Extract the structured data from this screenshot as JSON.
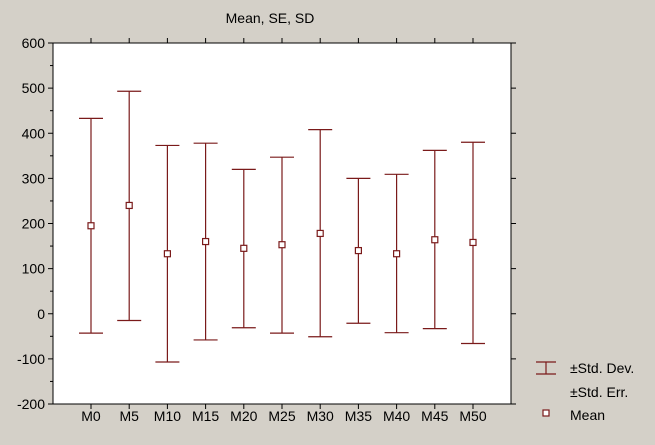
{
  "chart_data": {
    "type": "errorbar",
    "title": "Mean, SE, SD",
    "xlabel": "",
    "ylabel": "",
    "categories": [
      "M0",
      "M5",
      "M10",
      "M15",
      "M20",
      "M25",
      "M30",
      "M35",
      "M40",
      "M45",
      "M50"
    ],
    "series": [
      {
        "name": "Mean",
        "values": [
          195,
          240,
          133,
          160,
          145,
          153,
          178,
          140,
          133,
          164,
          158
        ],
        "sd_high": [
          433,
          493,
          373,
          378,
          320,
          347,
          408,
          300,
          309,
          362,
          380
        ],
        "sd_low": [
          -43,
          -15,
          -107,
          -58,
          -31,
          -43,
          -51,
          -21,
          -42,
          -33,
          -66
        ]
      }
    ],
    "ylim": [
      -200,
      600
    ],
    "yticks": [
      -200,
      -100,
      0,
      100,
      200,
      300,
      400,
      500,
      600
    ],
    "grid": false,
    "legend_position": "bottom-right",
    "legend": {
      "sd_label": "±Std. Dev.",
      "se_label": "±Std. Err.",
      "mean_label": "Mean"
    },
    "colors": {
      "background": "#d4d0c8",
      "plot_background": "#ffffff",
      "series": "#7a1a1a",
      "axis": "#000000"
    }
  }
}
